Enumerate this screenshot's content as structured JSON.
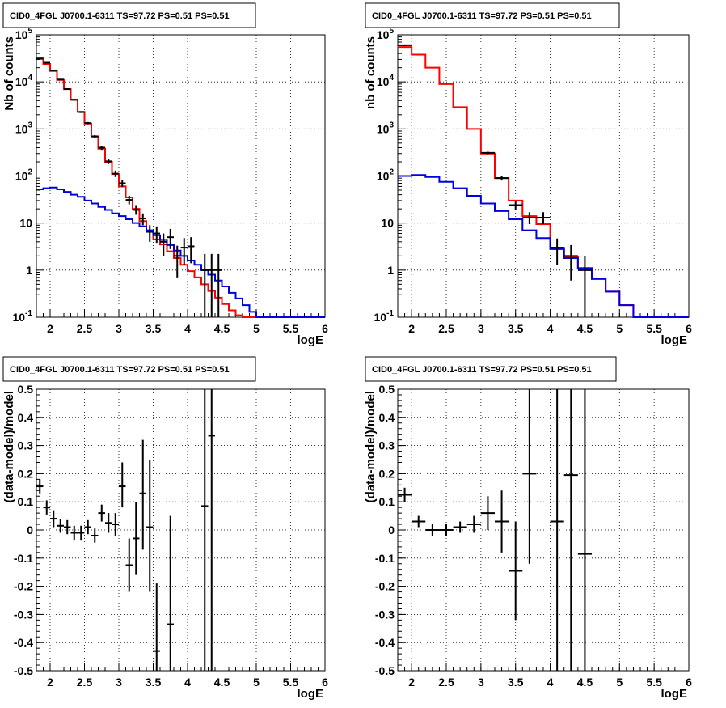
{
  "chart_data": [
    {
      "id": "p1",
      "type": "line",
      "scale": "log",
      "title": "CID0_4FGL J0700.1-6311 TS=97.72 PS=0.51 PS=0.51",
      "xlabel": "logE",
      "ylabel": "Nb of counts",
      "xlim": [
        1.8,
        6.0
      ],
      "ylim": [
        0.1,
        100000
      ],
      "xticks": [
        "2",
        "2.5",
        "3",
        "3.5",
        "4",
        "4.5",
        "5",
        "5.5",
        "6"
      ],
      "yticks": [
        "10^-1",
        "1",
        "10",
        "10^2",
        "10^3",
        "10^4",
        "10^5"
      ],
      "grid": true,
      "series": [
        {
          "color": "#ff0000",
          "style": "step",
          "edges": [
            1.8,
            1.9,
            2.0,
            2.1,
            2.2,
            2.3,
            2.4,
            2.5,
            2.6,
            2.7,
            2.8,
            2.9,
            3.0,
            3.1,
            3.2,
            3.3,
            3.4,
            3.5,
            3.6,
            3.7,
            3.8,
            3.9,
            4.0,
            4.1,
            4.2,
            4.3,
            4.4,
            4.5,
            4.6,
            4.7,
            4.8,
            4.9,
            5.0,
            5.1,
            5.2,
            5.3,
            5.4,
            5.5,
            5.6,
            5.7,
            5.8,
            5.9,
            6.0
          ],
          "values": [
            32000,
            24000,
            17000,
            11000,
            7000,
            4200,
            2300,
            1300,
            700,
            380,
            200,
            110,
            60,
            35,
            20,
            11,
            6.5,
            4.5,
            3.5,
            2.5,
            1.8,
            1.3,
            0.95,
            0.7,
            0.5,
            0.36,
            0.26,
            0.19,
            0.14,
            0.11,
            0.1,
            0.1,
            0.1,
            0.1,
            0.1,
            0.1,
            0.1,
            0.1,
            0.1,
            0.1,
            0.1,
            0.1
          ]
        },
        {
          "color": "#0000dd",
          "style": "step",
          "edges": [
            1.8,
            1.9,
            2.0,
            2.1,
            2.2,
            2.3,
            2.4,
            2.5,
            2.6,
            2.7,
            2.8,
            2.9,
            3.0,
            3.1,
            3.2,
            3.3,
            3.4,
            3.5,
            3.6,
            3.7,
            3.8,
            3.9,
            4.0,
            4.1,
            4.2,
            4.3,
            4.4,
            4.5,
            4.6,
            4.7,
            4.8,
            4.9,
            5.0,
            5.1,
            5.2,
            5.3,
            5.4,
            5.5,
            5.6,
            5.7,
            5.8,
            5.9,
            6.0
          ],
          "values": [
            52,
            55,
            57,
            52,
            46,
            40,
            36,
            30,
            26,
            22,
            19,
            16,
            14,
            12,
            10,
            8.5,
            7,
            5.5,
            4.4,
            3.4,
            2.6,
            2.0,
            1.6,
            1.3,
            1.0,
            0.8,
            0.6,
            0.45,
            0.33,
            0.25,
            0.18,
            0.13,
            0.1,
            0.1,
            0.1,
            0.1,
            0.1,
            0.1,
            0.1,
            0.1,
            0.1,
            0.1
          ]
        }
      ],
      "points": [
        {
          "x": 1.85,
          "y": 31000,
          "xerr": 0.05,
          "ylo": 30000,
          "yhi": 32000
        },
        {
          "x": 1.95,
          "y": 25500,
          "xerr": 0.05,
          "ylo": 25000,
          "yhi": 26000
        },
        {
          "x": 2.05,
          "y": 17500,
          "xerr": 0.05,
          "ylo": 17000,
          "yhi": 18000
        },
        {
          "x": 2.15,
          "y": 11200,
          "xerr": 0.05,
          "ylo": 10800,
          "yhi": 11600
        },
        {
          "x": 2.25,
          "y": 7050,
          "xerr": 0.05,
          "ylo": 6800,
          "yhi": 7300
        },
        {
          "x": 2.35,
          "y": 4150,
          "xerr": 0.05,
          "ylo": 4000,
          "yhi": 4300
        },
        {
          "x": 2.45,
          "y": 2280,
          "xerr": 0.05,
          "ylo": 2180,
          "yhi": 2380
        },
        {
          "x": 2.55,
          "y": 1330,
          "xerr": 0.05,
          "ylo": 1260,
          "yhi": 1400
        },
        {
          "x": 2.65,
          "y": 690,
          "xerr": 0.05,
          "ylo": 640,
          "yhi": 740
        },
        {
          "x": 2.75,
          "y": 400,
          "xerr": 0.05,
          "ylo": 360,
          "yhi": 440
        },
        {
          "x": 2.85,
          "y": 205,
          "xerr": 0.05,
          "ylo": 180,
          "yhi": 230
        },
        {
          "x": 2.95,
          "y": 112,
          "xerr": 0.05,
          "ylo": 95,
          "yhi": 130
        },
        {
          "x": 3.05,
          "y": 70,
          "xerr": 0.05,
          "ylo": 58,
          "yhi": 82
        },
        {
          "x": 3.15,
          "y": 31,
          "xerr": 0.05,
          "ylo": 25,
          "yhi": 38
        },
        {
          "x": 3.25,
          "y": 19,
          "xerr": 0.05,
          "ylo": 15,
          "yhi": 24
        },
        {
          "x": 3.35,
          "y": 12.5,
          "xerr": 0.05,
          "ylo": 9,
          "yhi": 16
        },
        {
          "x": 3.45,
          "y": 6.5,
          "xerr": 0.05,
          "ylo": 4,
          "yhi": 9
        },
        {
          "x": 3.55,
          "y": 6,
          "xerr": 0.05,
          "ylo": 3.8,
          "yhi": 8.5
        },
        {
          "x": 3.65,
          "y": 4,
          "xerr": 0.05,
          "ylo": 2,
          "yhi": 6
        },
        {
          "x": 3.75,
          "y": 5,
          "xerr": 0.05,
          "ylo": 2.8,
          "yhi": 7.5
        },
        {
          "x": 3.85,
          "y": 2,
          "xerr": 0.05,
          "ylo": 0.7,
          "yhi": 3.3
        },
        {
          "x": 3.95,
          "y": 3,
          "xerr": 0.05,
          "ylo": 1.3,
          "yhi": 4.8
        },
        {
          "x": 4.05,
          "y": 3.2,
          "xerr": 0.05,
          "ylo": 1.4,
          "yhi": 5.0
        },
        {
          "x": 4.25,
          "y": 1,
          "xerr": 0.05,
          "ylo": 0.1,
          "yhi": 2.2
        },
        {
          "x": 4.35,
          "y": 1,
          "xerr": 0.05,
          "ylo": 0.1,
          "yhi": 2.2
        },
        {
          "x": 4.45,
          "y": 1,
          "xerr": 0.05,
          "ylo": 0.1,
          "yhi": 2.2
        }
      ]
    },
    {
      "id": "p2",
      "type": "line",
      "scale": "log",
      "title": "CID0_4FGL J0700.1-6311 TS=97.72 PS=0.51 PS=0.51",
      "xlabel": "logE",
      "ylabel": "nb of counts",
      "xlim": [
        1.8,
        6.0
      ],
      "ylim": [
        0.1,
        100000
      ],
      "xticks": [
        "2",
        "2.5",
        "3",
        "3.5",
        "4",
        "4.5",
        "5",
        "5.5",
        "6"
      ],
      "yticks": [
        "10^-1",
        "1",
        "10",
        "10^2",
        "10^3",
        "10^4",
        "10^5"
      ],
      "grid": true,
      "series": [
        {
          "color": "#ff0000",
          "style": "step",
          "edges": [
            1.8,
            2.0,
            2.2,
            2.4,
            2.6,
            2.8,
            3.0,
            3.2,
            3.4,
            3.6,
            3.8,
            4.0,
            4.2,
            4.4,
            4.6,
            4.8,
            5.0,
            5.2,
            5.4,
            5.6,
            5.8,
            6.0
          ],
          "values": [
            55000,
            38000,
            20000,
            9000,
            2900,
            1000,
            300,
            90,
            30,
            14,
            9.5,
            3,
            1.9,
            1.1,
            0.65,
            0.35,
            0.18,
            0.1,
            0.1,
            0.1,
            0.1
          ]
        },
        {
          "color": "#0000dd",
          "style": "step",
          "edges": [
            1.8,
            2.0,
            2.2,
            2.4,
            2.6,
            2.8,
            3.0,
            3.2,
            3.4,
            3.6,
            3.8,
            4.0,
            4.2,
            4.4,
            4.6,
            4.8,
            5.0,
            5.2,
            5.4,
            5.6,
            5.8,
            6.0
          ],
          "values": [
            100,
            105,
            95,
            75,
            55,
            38,
            26,
            18,
            12,
            7,
            4.8,
            2.8,
            1.8,
            1.1,
            0.65,
            0.35,
            0.18,
            0.1,
            0.1,
            0.1,
            0.1
          ]
        }
      ],
      "points": [
        {
          "x": 1.9,
          "y": 60000,
          "xerr": 0.1,
          "ylo": 58000,
          "yhi": 62000
        },
        {
          "x": 3.1,
          "y": 310,
          "xerr": 0.1,
          "ylo": 290,
          "yhi": 330
        },
        {
          "x": 3.3,
          "y": 90,
          "xerr": 0.1,
          "ylo": 80,
          "yhi": 100
        },
        {
          "x": 3.5,
          "y": 24,
          "xerr": 0.1,
          "ylo": 19,
          "yhi": 29
        },
        {
          "x": 3.7,
          "y": 13,
          "xerr": 0.1,
          "ylo": 9.5,
          "yhi": 17
        },
        {
          "x": 3.9,
          "y": 13,
          "xerr": 0.1,
          "ylo": 9.5,
          "yhi": 17
        },
        {
          "x": 4.1,
          "y": 3,
          "xerr": 0.1,
          "ylo": 1.3,
          "yhi": 4.7
        },
        {
          "x": 4.3,
          "y": 2,
          "xerr": 0.1,
          "ylo": 0.6,
          "yhi": 3.4
        },
        {
          "x": 4.5,
          "y": 1,
          "xerr": 0.1,
          "ylo": 0.1,
          "yhi": 2.0
        }
      ]
    },
    {
      "id": "p3",
      "type": "scatter",
      "scale": "linear",
      "title": "CID0_4FGL J0700.1-6311 TS=97.72 PS=0.51 PS=0.51",
      "xlabel": "logE",
      "ylabel": "(data-model)/model",
      "xlim": [
        1.8,
        6.0
      ],
      "ylim": [
        -0.5,
        0.5
      ],
      "xticks": [
        "2",
        "2.5",
        "3",
        "3.5",
        "4",
        "4.5",
        "5",
        "5.5",
        "6"
      ],
      "yticks": [
        "-0.5",
        "-0.4",
        "-0.3",
        "-0.2",
        "-0.1",
        "0",
        "0.1",
        "0.2",
        "0.3",
        "0.4",
        "0.5"
      ],
      "grid": true,
      "series": [],
      "points": [
        {
          "x": 1.85,
          "y": 0.155,
          "xerr": 0.05,
          "ylo": 0.13,
          "yhi": 0.18
        },
        {
          "x": 1.95,
          "y": 0.08,
          "xerr": 0.05,
          "ylo": 0.055,
          "yhi": 0.105
        },
        {
          "x": 2.05,
          "y": 0.04,
          "xerr": 0.05,
          "ylo": 0.01,
          "yhi": 0.07
        },
        {
          "x": 2.15,
          "y": 0.015,
          "xerr": 0.05,
          "ylo": -0.01,
          "yhi": 0.04
        },
        {
          "x": 2.25,
          "y": 0.01,
          "xerr": 0.05,
          "ylo": -0.015,
          "yhi": 0.035
        },
        {
          "x": 2.35,
          "y": -0.01,
          "xerr": 0.05,
          "ylo": -0.035,
          "yhi": 0.015
        },
        {
          "x": 2.45,
          "y": -0.01,
          "xerr": 0.05,
          "ylo": -0.035,
          "yhi": 0.015
        },
        {
          "x": 2.55,
          "y": 0.01,
          "xerr": 0.05,
          "ylo": -0.015,
          "yhi": 0.035
        },
        {
          "x": 2.65,
          "y": -0.02,
          "xerr": 0.05,
          "ylo": -0.045,
          "yhi": 0.005
        },
        {
          "x": 2.75,
          "y": 0.06,
          "xerr": 0.05,
          "ylo": 0.03,
          "yhi": 0.09
        },
        {
          "x": 2.85,
          "y": 0.025,
          "xerr": 0.05,
          "ylo": -0.01,
          "yhi": 0.06
        },
        {
          "x": 2.95,
          "y": 0.02,
          "xerr": 0.05,
          "ylo": -0.02,
          "yhi": 0.06
        },
        {
          "x": 3.05,
          "y": 0.155,
          "xerr": 0.05,
          "ylo": 0.08,
          "yhi": 0.24
        },
        {
          "x": 3.15,
          "y": -0.125,
          "xerr": 0.05,
          "ylo": -0.22,
          "yhi": -0.03
        },
        {
          "x": 3.25,
          "y": -0.03,
          "xerr": 0.05,
          "ylo": -0.16,
          "yhi": 0.1
        },
        {
          "x": 3.35,
          "y": 0.13,
          "xerr": 0.05,
          "ylo": -0.07,
          "yhi": 0.32
        },
        {
          "x": 3.45,
          "y": 0.01,
          "xerr": 0.05,
          "ylo": -0.22,
          "yhi": 0.25
        },
        {
          "x": 3.55,
          "y": -0.43,
          "xerr": 0.05,
          "ylo": -0.5,
          "yhi": -0.19
        },
        {
          "x": 3.75,
          "y": -0.335,
          "xerr": 0.05,
          "ylo": -0.5,
          "yhi": 0.05
        },
        {
          "x": 4.25,
          "y": 0.085,
          "xerr": 0.05,
          "ylo": -0.5,
          "yhi": 0.5
        },
        {
          "x": 4.35,
          "y": 0.335,
          "xerr": 0.05,
          "ylo": -0.5,
          "yhi": 0.5
        }
      ]
    },
    {
      "id": "p4",
      "type": "scatter",
      "scale": "linear",
      "title": "CID0_4FGL J0700.1-6311 TS=97.72 PS=0.51 PS=0.51",
      "xlabel": "logE",
      "ylabel": "(data-model)/model",
      "xlim": [
        1.8,
        6.0
      ],
      "ylim": [
        -0.5,
        0.5
      ],
      "xticks": [
        "2",
        "2.5",
        "3",
        "3.5",
        "4",
        "4.5",
        "5",
        "5.5",
        "6"
      ],
      "yticks": [
        "-0.5",
        "-0.4",
        "-0.3",
        "-0.2",
        "-0.1",
        "0",
        "0.1",
        "0.2",
        "0.3",
        "0.4",
        "0.5"
      ],
      "grid": true,
      "series": [],
      "points": [
        {
          "x": 1.9,
          "y": 0.125,
          "xerr": 0.1,
          "ylo": 0.1,
          "yhi": 0.15
        },
        {
          "x": 2.1,
          "y": 0.03,
          "xerr": 0.1,
          "ylo": 0.01,
          "yhi": 0.05
        },
        {
          "x": 2.3,
          "y": 0.0,
          "xerr": 0.1,
          "ylo": -0.02,
          "yhi": 0.02
        },
        {
          "x": 2.5,
          "y": 0.0,
          "xerr": 0.1,
          "ylo": -0.02,
          "yhi": 0.02
        },
        {
          "x": 2.7,
          "y": 0.01,
          "xerr": 0.1,
          "ylo": -0.01,
          "yhi": 0.03
        },
        {
          "x": 2.9,
          "y": 0.02,
          "xerr": 0.1,
          "ylo": -0.01,
          "yhi": 0.05
        },
        {
          "x": 3.1,
          "y": 0.06,
          "xerr": 0.1,
          "ylo": 0.0,
          "yhi": 0.12
        },
        {
          "x": 3.3,
          "y": 0.03,
          "xerr": 0.1,
          "ylo": -0.08,
          "yhi": 0.14
        },
        {
          "x": 3.5,
          "y": -0.145,
          "xerr": 0.1,
          "ylo": -0.32,
          "yhi": 0.03
        },
        {
          "x": 3.7,
          "y": 0.2,
          "xerr": 0.1,
          "ylo": -0.12,
          "yhi": 0.5
        },
        {
          "x": 4.1,
          "y": 0.03,
          "xerr": 0.1,
          "ylo": -0.5,
          "yhi": 0.5
        },
        {
          "x": 4.3,
          "y": 0.195,
          "xerr": 0.1,
          "ylo": -0.5,
          "yhi": 0.5
        },
        {
          "x": 4.5,
          "y": -0.085,
          "xerr": 0.1,
          "ylo": -0.5,
          "yhi": 0.5
        }
      ]
    }
  ]
}
